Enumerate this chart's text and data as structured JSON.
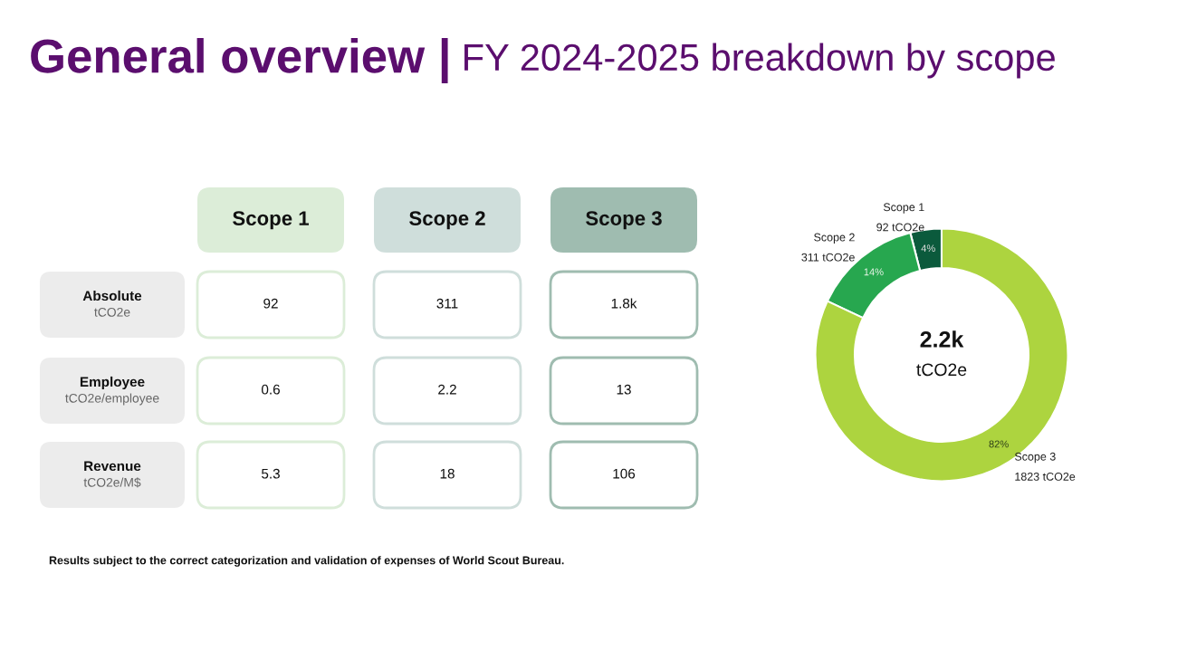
{
  "chart_data": [
    {
      "type": "other",
      "title": "General overview |",
      "subtitle": "FY 2024-2025 breakdown by scope",
      "categories": [
        "Scope 1",
        "Scope 2",
        "Scope 3"
      ],
      "colors": [
        "#dcedd8",
        "#cfdedb",
        "#9fbcb0"
      ],
      "y_categories": [
        "Absolute",
        "Employee",
        "Revenue"
      ],
      "y2_categories": [
        "tCO2e",
        "tCO2e/employee",
        "tCO2e/M$"
      ],
      "cell_labels": [
        [
          "92",
          "311",
          "1.8k"
        ],
        [
          "0.6",
          "2.2",
          "13"
        ],
        [
          "5.3",
          "18",
          "106"
        ]
      ],
      "annotations": [
        "Results subject to the correct categorization and validation of expenses of World Scout Bureau."
      ]
    },
    {
      "type": "donut",
      "categories": [
        "Scope 1",
        "Scope 2",
        "Scope 3"
      ],
      "values": [
        4,
        14,
        82
      ],
      "colors": [
        "#0b5a3c",
        "#27a74f",
        "#add43f"
      ],
      "value_labels": [
        "4%",
        "14%",
        "82%"
      ],
      "annotations": [
        "92 tCO2e",
        "311 tCO2e",
        "1823 tCO2e",
        "2.2k",
        "tCO2e"
      ]
    }
  ]
}
